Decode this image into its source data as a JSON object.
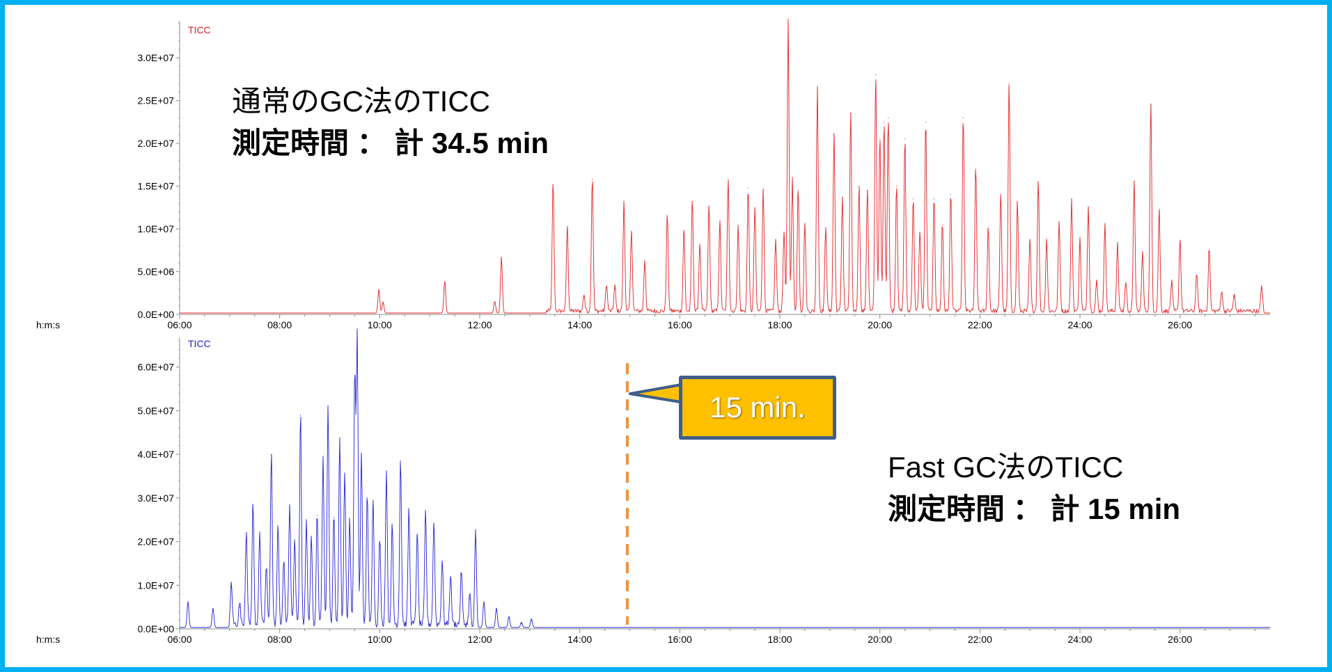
{
  "chart_data": [
    {
      "type": "line",
      "trace_label": "TICC",
      "series_color": "#e02020",
      "time_axis_label": "h:m:s",
      "xlim": [
        "06:00",
        "27:48"
      ],
      "ylim": [
        0,
        34000000
      ],
      "y_ticks": [
        "0.0E+00",
        "5.0E+06",
        "1.0E+07",
        "1.5E+07",
        "2.0E+07",
        "2.5E+07",
        "3.0E+07"
      ],
      "x_ticks": [
        "06:00",
        "08:00",
        "10:00",
        "12:00",
        "14:00",
        "16:00",
        "18:00",
        "20:00",
        "22:00",
        "24:00",
        "26:00"
      ],
      "peaks": [
        {
          "t": "09:59",
          "y": 2800000
        },
        {
          "t": "10:04",
          "y": 1300000
        },
        {
          "t": "11:18",
          "y": 3800000
        },
        {
          "t": "12:18",
          "y": 1400000
        },
        {
          "t": "12:26",
          "y": 6600000
        },
        {
          "t": "13:28",
          "y": 15200000
        },
        {
          "t": "13:45",
          "y": 10000000
        },
        {
          "t": "14:05",
          "y": 2000000
        },
        {
          "t": "14:15",
          "y": 15800000
        },
        {
          "t": "14:32",
          "y": 3200000
        },
        {
          "t": "14:42",
          "y": 3000000
        },
        {
          "t": "14:53",
          "y": 12800000
        },
        {
          "t": "15:02",
          "y": 9500000
        },
        {
          "t": "15:18",
          "y": 6000000
        },
        {
          "t": "15:45",
          "y": 11500000
        },
        {
          "t": "16:05",
          "y": 9800000
        },
        {
          "t": "16:15",
          "y": 13200000
        },
        {
          "t": "16:24",
          "y": 8000000
        },
        {
          "t": "16:35",
          "y": 12500000
        },
        {
          "t": "16:48",
          "y": 10500000
        },
        {
          "t": "16:58",
          "y": 15700000
        },
        {
          "t": "17:10",
          "y": 10000000
        },
        {
          "t": "17:22",
          "y": 14800000
        },
        {
          "t": "17:30",
          "y": 12200000
        },
        {
          "t": "17:40",
          "y": 14500000
        },
        {
          "t": "17:55",
          "y": 8500000
        },
        {
          "t": "18:05",
          "y": 9500000
        },
        {
          "t": "18:10",
          "y": 34000000
        },
        {
          "t": "18:15",
          "y": 15500000
        },
        {
          "t": "18:22",
          "y": 14500000
        },
        {
          "t": "18:30",
          "y": 10500000
        },
        {
          "t": "18:45",
          "y": 26500000
        },
        {
          "t": "18:55",
          "y": 10000000
        },
        {
          "t": "19:05",
          "y": 21000000
        },
        {
          "t": "19:15",
          "y": 13500000
        },
        {
          "t": "19:25",
          "y": 23500000
        },
        {
          "t": "19:35",
          "y": 15000000
        },
        {
          "t": "19:45",
          "y": 14500000
        },
        {
          "t": "19:55",
          "y": 28000000
        },
        {
          "t": "20:00",
          "y": 20500000
        },
        {
          "t": "20:05",
          "y": 22500000
        },
        {
          "t": "20:10",
          "y": 23000000
        },
        {
          "t": "20:20",
          "y": 15000000
        },
        {
          "t": "20:30",
          "y": 20500000
        },
        {
          "t": "20:40",
          "y": 13500000
        },
        {
          "t": "20:48",
          "y": 9500000
        },
        {
          "t": "20:55",
          "y": 22500000
        },
        {
          "t": "21:05",
          "y": 13500000
        },
        {
          "t": "21:15",
          "y": 10500000
        },
        {
          "t": "21:25",
          "y": 14000000
        },
        {
          "t": "21:40",
          "y": 23000000
        },
        {
          "t": "21:55",
          "y": 17000000
        },
        {
          "t": "22:10",
          "y": 10000000
        },
        {
          "t": "22:25",
          "y": 14000000
        },
        {
          "t": "22:35",
          "y": 27000000
        },
        {
          "t": "22:45",
          "y": 13000000
        },
        {
          "t": "23:00",
          "y": 8500000
        },
        {
          "t": "23:10",
          "y": 15500000
        },
        {
          "t": "23:20",
          "y": 8500000
        },
        {
          "t": "23:35",
          "y": 10500000
        },
        {
          "t": "23:50",
          "y": 13000000
        },
        {
          "t": "24:00",
          "y": 8500000
        },
        {
          "t": "24:10",
          "y": 12500000
        },
        {
          "t": "24:20",
          "y": 3500000
        },
        {
          "t": "24:30",
          "y": 10500000
        },
        {
          "t": "24:45",
          "y": 8000000
        },
        {
          "t": "24:55",
          "y": 3500000
        },
        {
          "t": "25:05",
          "y": 15500000
        },
        {
          "t": "25:15",
          "y": 7000000
        },
        {
          "t": "25:25",
          "y": 24500000
        },
        {
          "t": "25:35",
          "y": 12000000
        },
        {
          "t": "25:50",
          "y": 3500000
        },
        {
          "t": "26:00",
          "y": 8500000
        },
        {
          "t": "26:20",
          "y": 4500000
        },
        {
          "t": "26:35",
          "y": 7500000
        },
        {
          "t": "26:50",
          "y": 2500000
        },
        {
          "t": "27:05",
          "y": 2000000
        },
        {
          "t": "27:38",
          "y": 3000000
        }
      ]
    },
    {
      "type": "line",
      "trace_label": "TICC",
      "series_color": "#2020d0",
      "time_axis_label": "h:m:s",
      "xlim": [
        "06:00",
        "27:48"
      ],
      "ylim": [
        0,
        66000000
      ],
      "y_ticks": [
        "0.0E+00",
        "1.0E+07",
        "2.0E+07",
        "3.0E+07",
        "4.0E+07",
        "5.0E+07",
        "6.0E+07"
      ],
      "x_ticks": [
        "06:00",
        "08:00",
        "10:00",
        "12:00",
        "14:00",
        "16:00",
        "18:00",
        "20:00",
        "22:00",
        "24:00",
        "26:00"
      ],
      "peaks": [
        {
          "t": "06:10",
          "y": 6000000
        },
        {
          "t": "06:40",
          "y": 4500000
        },
        {
          "t": "07:02",
          "y": 9500000
        },
        {
          "t": "07:12",
          "y": 5000000
        },
        {
          "t": "07:20",
          "y": 22000000
        },
        {
          "t": "07:28",
          "y": 28000000
        },
        {
          "t": "07:36",
          "y": 21000000
        },
        {
          "t": "07:44",
          "y": 13500000
        },
        {
          "t": "07:50",
          "y": 40000000
        },
        {
          "t": "07:58",
          "y": 22500000
        },
        {
          "t": "08:05",
          "y": 15000000
        },
        {
          "t": "08:12",
          "y": 28000000
        },
        {
          "t": "08:18",
          "y": 19000000
        },
        {
          "t": "08:25",
          "y": 49000000
        },
        {
          "t": "08:32",
          "y": 23500000
        },
        {
          "t": "08:38",
          "y": 20000000
        },
        {
          "t": "08:45",
          "y": 26000000
        },
        {
          "t": "08:52",
          "y": 39000000
        },
        {
          "t": "08:58",
          "y": 51000000
        },
        {
          "t": "09:05",
          "y": 25500000
        },
        {
          "t": "09:12",
          "y": 42500000
        },
        {
          "t": "09:18",
          "y": 35500000
        },
        {
          "t": "09:24",
          "y": 24000000
        },
        {
          "t": "09:30",
          "y": 58000000
        },
        {
          "t": "09:33",
          "y": 66000000
        },
        {
          "t": "09:38",
          "y": 40000000
        },
        {
          "t": "09:45",
          "y": 30000000
        },
        {
          "t": "09:52",
          "y": 29500000
        },
        {
          "t": "10:00",
          "y": 20000000
        },
        {
          "t": "10:08",
          "y": 35500000
        },
        {
          "t": "10:15",
          "y": 23000000
        },
        {
          "t": "10:25",
          "y": 38500000
        },
        {
          "t": "10:35",
          "y": 26500000
        },
        {
          "t": "10:45",
          "y": 21500000
        },
        {
          "t": "10:55",
          "y": 26000000
        },
        {
          "t": "11:05",
          "y": 24000000
        },
        {
          "t": "11:15",
          "y": 15000000
        },
        {
          "t": "11:25",
          "y": 11500000
        },
        {
          "t": "11:38",
          "y": 12500000
        },
        {
          "t": "11:48",
          "y": 7000000
        },
        {
          "t": "11:55",
          "y": 22500000
        },
        {
          "t": "12:05",
          "y": 6000000
        },
        {
          "t": "12:20",
          "y": 4500000
        },
        {
          "t": "12:35",
          "y": 2500000
        },
        {
          "t": "12:50",
          "y": 1200000
        },
        {
          "t": "13:02",
          "y": 2000000
        }
      ],
      "marker_line_time": "14:57"
    }
  ],
  "annotations": {
    "top": [
      "通常のGC法のTICC",
      "測定時間 ： 計 34.5 min"
    ],
    "bottom": [
      "Fast GC法のTICC",
      "測定時間 ： 計 15 min"
    ],
    "callout": "15 min."
  },
  "colors": {
    "frame": "#00b0f0",
    "marker_line": "#f0903c",
    "callout_fill": "#ffc000",
    "callout_border": "#3f5f8a"
  }
}
